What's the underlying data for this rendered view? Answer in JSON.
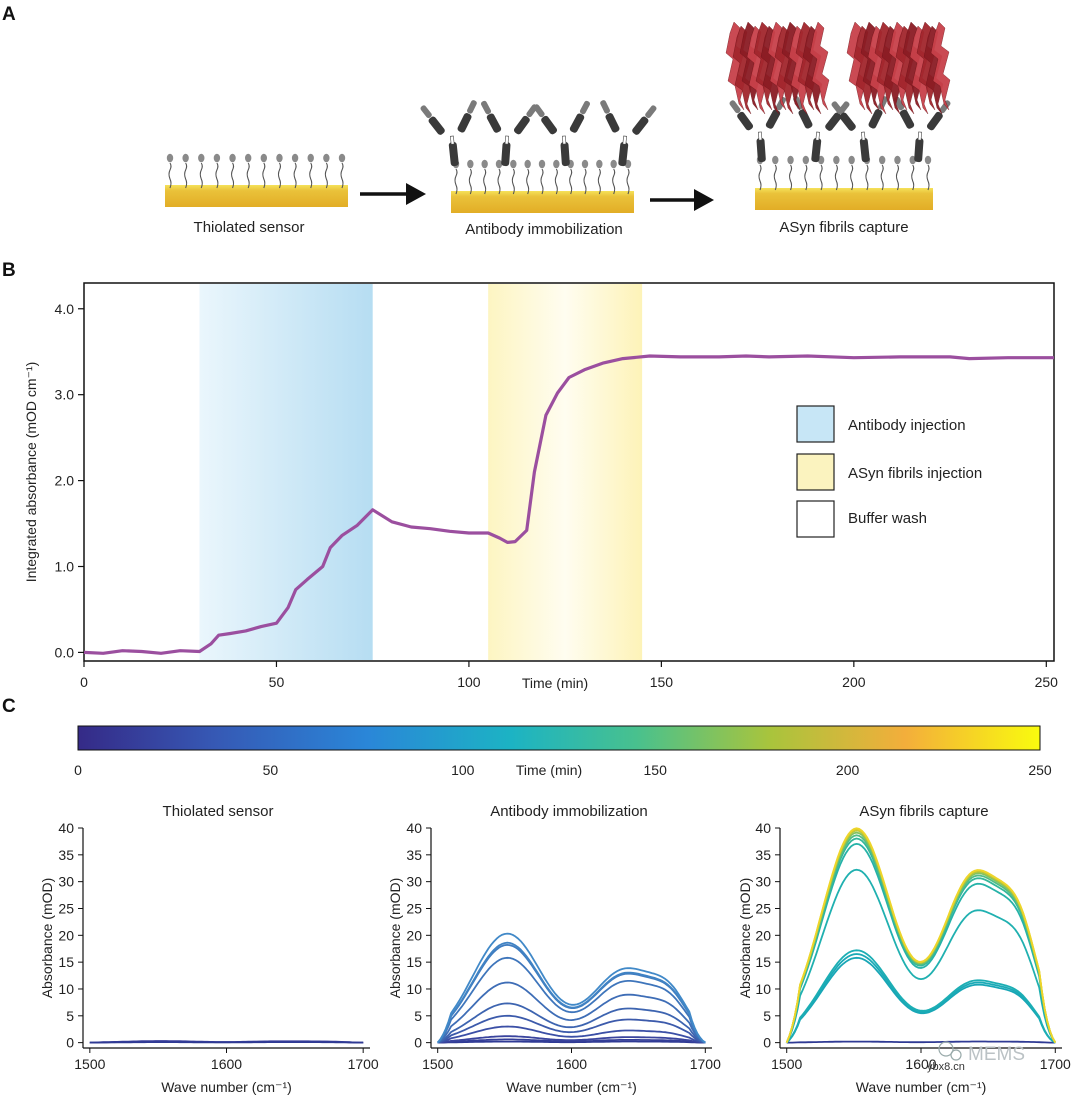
{
  "panels": {
    "a": "A",
    "b": "B",
    "c": "C"
  },
  "panel_a": {
    "steps": [
      {
        "label": "Thiolated sensor"
      },
      {
        "label": "Antibody immobilization"
      },
      {
        "label": "ASyn fibrils capture"
      }
    ],
    "colors": {
      "gold": "#e6b42c",
      "gold_top": "#f4e04a",
      "antibody": "#3a3a3a",
      "fibril": "#a2262d",
      "thiol": "#8a8a8a"
    }
  },
  "chart_data": [
    {
      "id": "panel-b",
      "type": "line",
      "title": "",
      "xlabel": "Time (min)",
      "ylabel": "Integrated absorbance (mOD cm⁻¹)",
      "xlim": [
        0,
        252
      ],
      "ylim": [
        -0.1,
        4.3
      ],
      "xticks": [
        0,
        50,
        100,
        150,
        200,
        250
      ],
      "yticks": [
        0.0,
        1.0,
        2.0,
        3.0,
        4.0
      ],
      "ytick_labels": [
        "0.0",
        "1.0",
        "2.0",
        "3.0",
        "4.0"
      ],
      "series": [
        {
          "name": "Integrated absorbance",
          "color": "#9b4f9f",
          "x": [
            0,
            5,
            10,
            15,
            20,
            25,
            30,
            33,
            35,
            38,
            42,
            46,
            50,
            53,
            55,
            58,
            62,
            64,
            67,
            71,
            75,
            80,
            85,
            90,
            95,
            100,
            105,
            108,
            110,
            112,
            115,
            117,
            120,
            123,
            126,
            130,
            135,
            140,
            147,
            155,
            165,
            172,
            178,
            188,
            200,
            212,
            225,
            230,
            240,
            252
          ],
          "y": [
            0,
            -0.01,
            0.02,
            0.01,
            -0.01,
            0.02,
            0.01,
            0.1,
            0.2,
            0.22,
            0.25,
            0.3,
            0.34,
            0.52,
            0.73,
            0.85,
            1.0,
            1.22,
            1.36,
            1.48,
            1.66,
            1.52,
            1.46,
            1.44,
            1.41,
            1.39,
            1.39,
            1.33,
            1.28,
            1.29,
            1.42,
            2.1,
            2.76,
            3.02,
            3.2,
            3.29,
            3.37,
            3.42,
            3.45,
            3.44,
            3.44,
            3.45,
            3.44,
            3.45,
            3.43,
            3.44,
            3.44,
            3.42,
            3.43,
            3.43
          ]
        }
      ],
      "regions": [
        {
          "name": "Antibody injection",
          "x": [
            30,
            75
          ],
          "color": "#b8dff3"
        },
        {
          "name": "ASyn fibrils injection",
          "x": [
            105,
            145
          ],
          "color": "#fdf2b3"
        }
      ],
      "legend": {
        "position": "right",
        "entries": [
          {
            "label": "Antibody injection",
            "color": "#c7e6f6"
          },
          {
            "label": "ASyn fibrils injection",
            "color": "#fbf3bf"
          },
          {
            "label": "Buffer wash",
            "color": "#ffffff"
          }
        ]
      }
    },
    {
      "id": "colorbar",
      "type": "heatmap",
      "xlabel": "Time (min)",
      "range": [
        0,
        250
      ],
      "ticks": [
        0,
        50,
        100,
        150,
        200,
        250
      ],
      "stops": [
        "#352a87",
        "#3658b4",
        "#2a86d8",
        "#1cb3c4",
        "#48c18e",
        "#a9c43c",
        "#f3ae3b",
        "#f9fb0e"
      ]
    },
    {
      "id": "panel-c-thiol",
      "type": "line",
      "title": "Thiolated sensor",
      "xlabel": "Wave number (cm⁻¹)",
      "ylabel": "Absorbance (mOD)",
      "xlim": [
        1495,
        1705
      ],
      "ylim": [
        -1,
        40
      ],
      "xticks": [
        1500,
        1600,
        1700
      ],
      "yticks": [
        0,
        5,
        10,
        15,
        20,
        25,
        30,
        35,
        40
      ],
      "series": [
        {
          "color": "#343e98",
          "peak1": 0.2,
          "peak2": 0.2
        },
        {
          "color": "#3a3f9c",
          "peak1": 0.3,
          "peak2": 0.25
        },
        {
          "color": "#2f3a94",
          "peak1": 0.1,
          "peak2": 0.1
        }
      ]
    },
    {
      "id": "panel-c-antibody",
      "type": "line",
      "title": "Antibody immobilization",
      "xlabel": "Wave number (cm⁻¹)",
      "ylabel": "Absorbance (mOD)",
      "xlim": [
        1495,
        1705
      ],
      "ylim": [
        -1,
        40
      ],
      "xticks": [
        1500,
        1600,
        1700
      ],
      "yticks": [
        0,
        5,
        10,
        15,
        20,
        25,
        30,
        35,
        40
      ],
      "series": [
        {
          "color": "#2f3a94",
          "peak1": 0.2,
          "peak2": 0.2
        },
        {
          "color": "#343e98",
          "peak1": 0.6,
          "peak2": 0.5
        },
        {
          "color": "#3a449e",
          "peak1": 1.2,
          "peak2": 1.0
        },
        {
          "color": "#3b4fa6",
          "peak1": 3.0,
          "peak2": 2.2
        },
        {
          "color": "#3c5aab",
          "peak1": 5.0,
          "peak2": 4.2
        },
        {
          "color": "#3d64b0",
          "peak1": 7.3,
          "peak2": 6.2
        },
        {
          "color": "#3e6db6",
          "peak1": 11.2,
          "peak2": 8.7
        },
        {
          "color": "#3e75bb",
          "peak1": 15.8,
          "peak2": 11.2
        },
        {
          "color": "#3f7cc0",
          "peak1": 18.2,
          "peak2": 12.5
        },
        {
          "color": "#4083c4",
          "peak1": 18.6,
          "peak2": 12.7
        },
        {
          "color": "#4189c8",
          "peak1": 20.3,
          "peak2": 13.5
        }
      ]
    },
    {
      "id": "panel-c-asyn",
      "type": "line",
      "title": "ASyn fibrils capture",
      "xlabel": "Wave number (cm⁻¹)",
      "ylabel": "Absorbance (mOD)",
      "xlim": [
        1495,
        1705
      ],
      "ylim": [
        -1,
        40
      ],
      "xticks": [
        1500,
        1600,
        1700
      ],
      "yticks": [
        0,
        5,
        10,
        15,
        20,
        25,
        30,
        35,
        40
      ],
      "series": [
        {
          "color": "#2f3a94",
          "peak1": 0.2,
          "peak2": 0.2
        },
        {
          "color": "#18a6b6",
          "peak1": 15.8,
          "peak2": 10.5
        },
        {
          "color": "#1aaab6",
          "peak1": 16.5,
          "peak2": 10.9
        },
        {
          "color": "#1caeb4",
          "peak1": 17.2,
          "peak2": 11.3
        },
        {
          "color": "#20b0b0",
          "peak1": 32.2,
          "peak2": 24.0
        },
        {
          "color": "#26b2a8",
          "peak1": 37.0,
          "peak2": 28.8
        },
        {
          "color": "#34b79a",
          "peak1": 38.0,
          "peak2": 29.8
        },
        {
          "color": "#52bd85",
          "peak1": 38.6,
          "peak2": 30.3
        },
        {
          "color": "#83c260",
          "peak1": 39.1,
          "peak2": 30.7
        },
        {
          "color": "#b6c63c",
          "peak1": 39.5,
          "peak2": 31.0
        },
        {
          "color": "#d8cc2a",
          "peak1": 39.7,
          "peak2": 31.2
        },
        {
          "color": "#eed52a",
          "peak1": 39.9,
          "peak2": 31.3
        }
      ]
    }
  ],
  "watermark": {
    "logo_text": "MEMS",
    "site": "ybx8.cn"
  }
}
